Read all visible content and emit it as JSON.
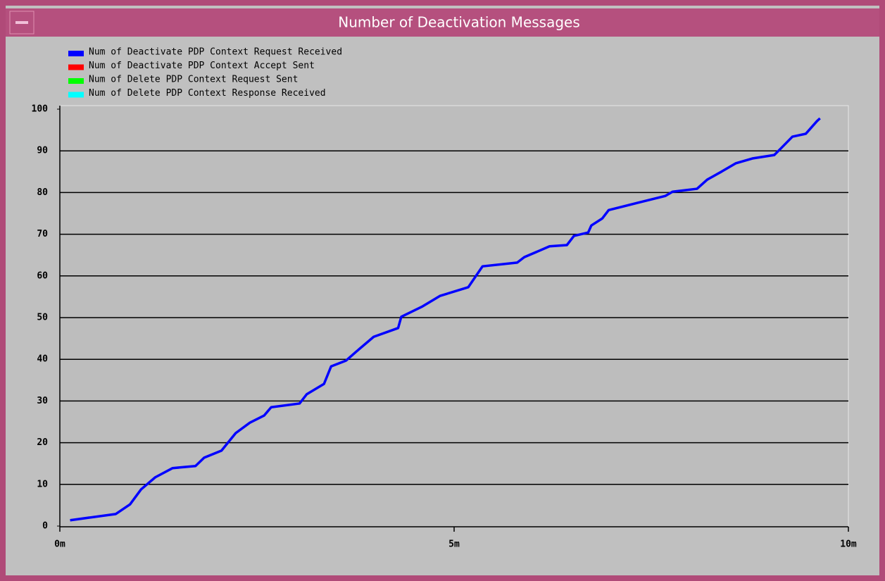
{
  "chart_data": {
    "type": "line",
    "title": "Number of Deactivation Messages",
    "series": [
      {
        "name": "Num of Deactivate PDP Context Request Received",
        "color": "#0000ff",
        "x": [
          0.13,
          0.71,
          0.89,
          1.03,
          1.21,
          1.43,
          1.72,
          1.83,
          2.05,
          2.23,
          2.41,
          2.59,
          2.68,
          3.04,
          3.13,
          3.35,
          3.44,
          3.63,
          3.75,
          3.98,
          4.29,
          4.33,
          4.6,
          4.82,
          5.18,
          5.36,
          5.8,
          5.89,
          6.21,
          6.43,
          6.52,
          6.7,
          6.74,
          6.88,
          6.96,
          7.32,
          7.68,
          7.77,
          8.08,
          8.21,
          8.39,
          8.57,
          8.79,
          9.06,
          9.15,
          9.29,
          9.46,
          9.6,
          9.64
        ],
        "values": [
          1.4,
          2.9,
          5.2,
          8.8,
          11.7,
          13.9,
          14.4,
          16.4,
          18.1,
          22.3,
          24.8,
          26.5,
          28.5,
          29.4,
          31.6,
          34.1,
          38.3,
          39.7,
          41.7,
          45.4,
          47.5,
          50.2,
          52.7,
          55.2,
          57.3,
          62.3,
          63.2,
          64.5,
          67.1,
          67.4,
          69.6,
          70.4,
          72.1,
          73.8,
          75.8,
          77.5,
          79.2,
          80.2,
          80.9,
          83.1,
          85.0,
          87.0,
          88.2,
          89.0,
          90.7,
          93.4,
          94.1,
          97.1,
          97.8
        ]
      },
      {
        "name": "Num of Deactivate PDP Context Accept Sent",
        "color": "#ff0000"
      },
      {
        "name": "Num of Delete PDP Context Request Sent",
        "color": "#00ff00"
      },
      {
        "name": "Num of Delete PDP Context Response Received",
        "color": "#00ffff"
      }
    ],
    "xlim": [
      0,
      10
    ],
    "xticks": [
      {
        "value": 0,
        "label": "0m"
      },
      {
        "value": 5,
        "label": "5m"
      },
      {
        "value": 10,
        "label": "10m"
      }
    ],
    "ylim": [
      0,
      100
    ],
    "yticks": [
      0,
      10,
      20,
      30,
      40,
      50,
      60,
      70,
      80,
      90,
      100
    ],
    "grid": true
  }
}
